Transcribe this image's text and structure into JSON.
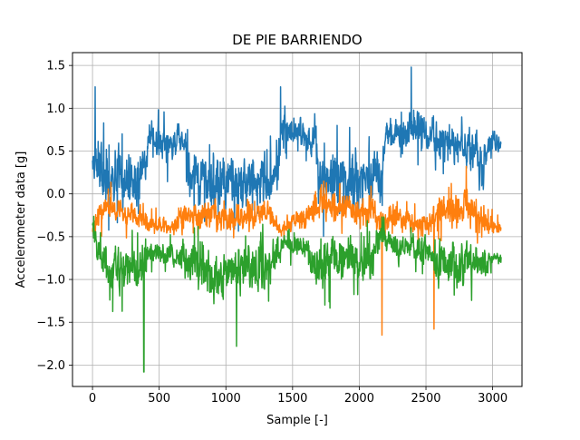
{
  "chart_data": {
    "type": "line",
    "title": "DE PIE BARRIENDO",
    "xlabel": "Sample [-]",
    "ylabel": "Accelerometer data [g]",
    "xlim": [
      -150,
      3220
    ],
    "ylim": [
      -2.25,
      1.65
    ],
    "xticks": [
      0,
      500,
      1000,
      1500,
      2000,
      2500,
      3000
    ],
    "yticks": [
      -2.0,
      -1.5,
      -1.0,
      -0.5,
      0.0,
      0.5,
      1.0,
      1.5
    ],
    "xtick_labels": [
      "0",
      "500",
      "1000",
      "1500",
      "2000",
      "2500",
      "3000"
    ],
    "ytick_labels": [
      "−2.0",
      "−1.5",
      "−1.0",
      "−0.5",
      "0.0",
      "0.5",
      "1.0",
      "1.5"
    ],
    "grid": true,
    "legend": "none",
    "sample_count": 3065,
    "series": [
      {
        "color": "#1f77b4",
        "envelope_x": [
          0,
          40,
          100,
          200,
          300,
          380,
          420,
          500,
          600,
          700,
          720,
          800,
          900,
          1000,
          1100,
          1200,
          1300,
          1380,
          1420,
          1500,
          1600,
          1680,
          1700,
          1800,
          1900,
          2000,
          2100,
          2170,
          2200,
          2300,
          2400,
          2500,
          2600,
          2700,
          2800,
          2880,
          2900,
          2950,
          3000,
          3065
        ],
        "center_y": [
          0.5,
          0.35,
          0.1,
          0.15,
          0.15,
          0.2,
          0.65,
          0.6,
          0.55,
          0.6,
          0.15,
          0.15,
          0.15,
          0.15,
          0.15,
          0.15,
          0.15,
          0.15,
          0.75,
          0.75,
          0.7,
          0.65,
          0.15,
          0.15,
          0.15,
          0.15,
          0.15,
          0.15,
          0.75,
          0.7,
          0.75,
          0.7,
          0.6,
          0.6,
          0.55,
          0.5,
          0.15,
          0.45,
          0.65,
          0.5
        ],
        "spread_y": [
          0.3,
          0.6,
          0.7,
          0.7,
          0.7,
          0.6,
          0.35,
          0.4,
          0.45,
          0.4,
          0.65,
          0.65,
          0.65,
          0.65,
          0.65,
          0.65,
          0.65,
          0.55,
          0.3,
          0.4,
          0.4,
          0.45,
          0.65,
          0.65,
          0.65,
          0.65,
          0.65,
          0.65,
          0.35,
          0.35,
          0.5,
          0.4,
          0.4,
          0.4,
          0.4,
          0.4,
          0.6,
          0.35,
          0.3,
          0.25
        ]
      },
      {
        "color": "#ff7f0e",
        "envelope_x": [
          0,
          100,
          200,
          300,
          400,
          500,
          600,
          700,
          800,
          900,
          1000,
          1100,
          1200,
          1300,
          1400,
          1500,
          1600,
          1700,
          1800,
          1900,
          2000,
          2100,
          2170,
          2200,
          2300,
          2400,
          2500,
          2600,
          2700,
          2800,
          2900,
          3000,
          3065
        ],
        "center_y": [
          -0.4,
          -0.15,
          -0.2,
          -0.25,
          -0.35,
          -0.35,
          -0.4,
          -0.25,
          -0.25,
          -0.25,
          -0.3,
          -0.3,
          -0.3,
          -0.15,
          -0.45,
          -0.3,
          -0.25,
          -0.1,
          -0.15,
          -0.15,
          -0.25,
          -0.2,
          -0.35,
          -0.3,
          -0.25,
          -0.35,
          -0.35,
          -0.2,
          -0.15,
          -0.1,
          -0.3,
          -0.35,
          -0.4
        ],
        "spread_y": [
          0.3,
          0.35,
          0.3,
          0.3,
          0.2,
          0.2,
          0.2,
          0.35,
          0.35,
          0.35,
          0.3,
          0.3,
          0.3,
          0.3,
          0.15,
          0.25,
          0.3,
          0.4,
          0.35,
          0.35,
          0.35,
          0.35,
          0.25,
          0.3,
          0.3,
          0.25,
          0.25,
          0.35,
          0.4,
          0.45,
          0.3,
          0.2,
          0.15
        ]
      },
      {
        "color": "#2ca02c",
        "envelope_x": [
          0,
          60,
          100,
          200,
          300,
          380,
          420,
          500,
          600,
          700,
          800,
          900,
          1000,
          1100,
          1200,
          1300,
          1380,
          1420,
          1500,
          1600,
          1700,
          1800,
          1900,
          2000,
          2100,
          2170,
          2200,
          2300,
          2400,
          2500,
          2600,
          2700,
          2800,
          2900,
          3000,
          3065
        ],
        "center_y": [
          -0.4,
          -0.8,
          -0.9,
          -0.85,
          -0.85,
          -0.9,
          -0.7,
          -0.7,
          -0.7,
          -0.75,
          -0.85,
          -0.9,
          -0.9,
          -0.85,
          -0.9,
          -0.85,
          -0.7,
          -0.55,
          -0.6,
          -0.65,
          -0.85,
          -0.8,
          -0.8,
          -0.8,
          -0.8,
          -0.4,
          -0.55,
          -0.65,
          -0.6,
          -0.7,
          -0.8,
          -0.85,
          -0.8,
          -0.8,
          -0.75,
          -0.75
        ],
        "spread_y": [
          0.4,
          0.5,
          0.55,
          0.55,
          0.55,
          0.65,
          0.25,
          0.25,
          0.25,
          0.45,
          0.55,
          0.55,
          0.55,
          0.55,
          0.55,
          0.55,
          0.4,
          0.2,
          0.25,
          0.25,
          0.55,
          0.55,
          0.55,
          0.55,
          0.55,
          0.45,
          0.25,
          0.3,
          0.25,
          0.4,
          0.5,
          0.55,
          0.5,
          0.4,
          0.2,
          0.15
        ]
      }
    ],
    "spikes": [
      {
        "series": 0,
        "x": 20,
        "y": 1.25
      },
      {
        "series": 0,
        "x": 1410,
        "y": 1.25
      },
      {
        "series": 0,
        "x": 2390,
        "y": 1.48
      },
      {
        "series": 1,
        "x": 2170,
        "y": -1.65
      },
      {
        "series": 1,
        "x": 2560,
        "y": -1.58
      },
      {
        "series": 2,
        "x": 385,
        "y": -2.08
      },
      {
        "series": 2,
        "x": 1080,
        "y": -1.78
      }
    ]
  }
}
